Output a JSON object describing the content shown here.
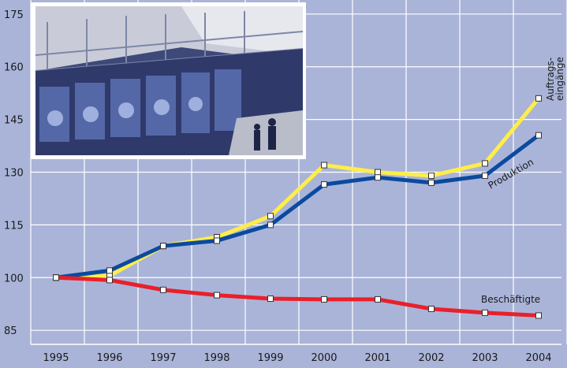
{
  "chart_data": {
    "type": "line",
    "x": [
      "1995",
      "1996",
      "1997",
      "1998",
      "1999",
      "2000",
      "2001",
      "2002",
      "2003",
      "2004"
    ],
    "yticks": [
      85,
      100,
      115,
      130,
      145,
      160,
      175
    ],
    "ylim": [
      81,
      179
    ],
    "grid": true,
    "series": [
      {
        "name": "Auftrags-eingänge",
        "color": "#ffed4a",
        "values": [
          100,
          100.5,
          109,
          111.5,
          117.5,
          132,
          130,
          129,
          132.5,
          151
        ]
      },
      {
        "name": "Produktion",
        "color": "#0a4a9f",
        "values": [
          100,
          102,
          109,
          110.5,
          115,
          126.5,
          128.5,
          127,
          129,
          140.5
        ]
      },
      {
        "name": "Beschäftigte",
        "color": "#e8202a",
        "values": [
          100,
          99.3,
          96.5,
          95,
          94,
          93.8,
          93.8,
          91.1,
          90,
          89.2
        ]
      }
    ],
    "series_label_lines": [
      {
        "series": "Auftrags-eingänge",
        "lines": [
          "Auftrags-",
          "eingänge"
        ]
      },
      {
        "series": "Produktion",
        "lines": [
          "Produktion"
        ]
      },
      {
        "series": "Beschäftigte",
        "lines": [
          "Beschäftigte"
        ]
      }
    ]
  },
  "photo": {
    "subject": "printing-press-photo"
  }
}
